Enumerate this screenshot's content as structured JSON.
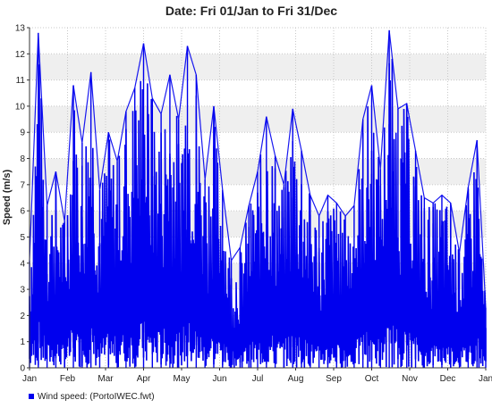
{
  "chart_data": {
    "type": "line",
    "title": "Date: Fri 01/Jan to Fri 31/Dec",
    "xlabel": "",
    "ylabel": "Speed (m/s)",
    "ylim": [
      0,
      13
    ],
    "y_ticks": [
      "0",
      "1",
      "2",
      "3",
      "4",
      "5",
      "6",
      "7",
      "8",
      "9",
      "10",
      "11",
      "12",
      "13"
    ],
    "x_ticks": [
      "Jan",
      "Feb",
      "Mar",
      "Apr",
      "May",
      "Jun",
      "Jul",
      "Aug",
      "Sep",
      "Oct",
      "Nov",
      "Dec",
      "Jan"
    ],
    "grid": true,
    "legend_position": "bottom-left",
    "colors": {
      "series": "#0000ee",
      "band": "#efefef",
      "grid": "#c8c8c8",
      "axis": "#333333"
    },
    "series": [
      {
        "name": "Wind speed:  (PortoIWEC.fwt)",
        "x": [
          "01/Jan",
          "08/Jan",
          "15/Jan",
          "22/Jan",
          "29/Jan",
          "05/Feb",
          "12/Feb",
          "19/Feb",
          "26/Feb",
          "05/Mar",
          "12/Mar",
          "19/Mar",
          "26/Mar",
          "02/Apr",
          "09/Apr",
          "16/Apr",
          "23/Apr",
          "30/Apr",
          "07/May",
          "14/May",
          "21/May",
          "28/May",
          "04/Jun",
          "11/Jun",
          "18/Jun",
          "25/Jun",
          "02/Jul",
          "09/Jul",
          "16/Jul",
          "23/Jul",
          "30/Jul",
          "06/Aug",
          "13/Aug",
          "20/Aug",
          "27/Aug",
          "03/Sep",
          "10/Sep",
          "17/Sep",
          "24/Sep",
          "01/Oct",
          "08/Oct",
          "15/Oct",
          "22/Oct",
          "29/Oct",
          "05/Nov",
          "12/Nov",
          "19/Nov",
          "26/Nov",
          "03/Dec",
          "10/Dec",
          "17/Dec",
          "24/Dec",
          "31/Dec"
        ],
        "y": [
          4.1,
          12.8,
          6.2,
          7.5,
          5.6,
          10.8,
          8.6,
          11.3,
          6.8,
          9.0,
          7.9,
          9.8,
          10.7,
          12.4,
          10.3,
          9.7,
          11.2,
          9.5,
          12.3,
          11.2,
          7.2,
          10.0,
          6.8,
          4.1,
          4.6,
          6.2,
          7.5,
          9.6,
          8.1,
          7.0,
          9.9,
          8.3,
          6.6,
          5.8,
          6.6,
          6.3,
          5.8,
          6.2,
          9.5,
          10.8,
          7.6,
          12.9,
          9.9,
          10.1,
          8.3,
          6.5,
          6.3,
          6.6,
          6.3,
          4.4,
          6.9,
          8.7,
          2.3
        ]
      }
    ]
  }
}
